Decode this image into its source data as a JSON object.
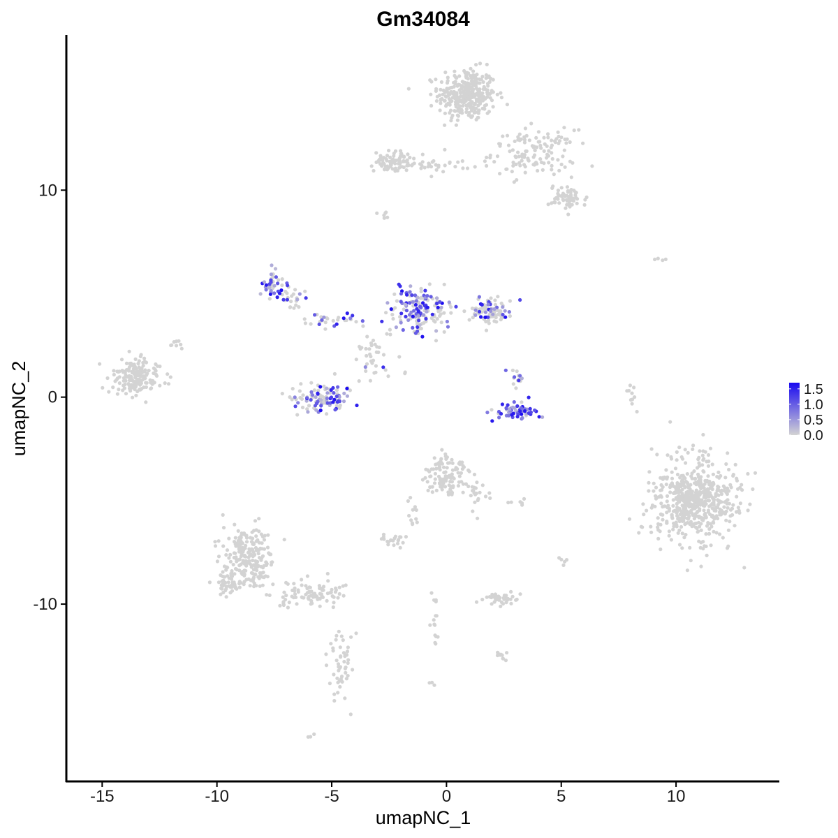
{
  "chart_data": {
    "type": "scatter",
    "title": "Gm34084",
    "xlabel": "umapNC_1",
    "ylabel": "umapNC_2",
    "xlim": [
      -16.5,
      14.5
    ],
    "ylim": [
      -18.5,
      17.5
    ],
    "x_ticks": [
      -15,
      -10,
      -5,
      0,
      5,
      10
    ],
    "x_tick_labels": [
      "-15",
      "-10",
      "-5",
      "0",
      "5",
      "10"
    ],
    "y_ticks": [
      -10,
      0,
      10
    ],
    "y_tick_labels": [
      "-10",
      "0",
      "10"
    ],
    "grid": false,
    "color_scale": {
      "low": "#d3d3d3",
      "high": "#1a0af0",
      "min": 0,
      "max": 1.7,
      "breaks": [
        0.0,
        0.5,
        1.0,
        1.5
      ],
      "labels": [
        "0.0",
        "0.5",
        "1.0",
        "1.5"
      ],
      "legend_position": "right"
    },
    "clusters": [
      {
        "x": 0.9,
        "y": 14.6,
        "sx": 0.9,
        "sy": 0.9,
        "n": 340,
        "expr": 0
      },
      {
        "x": 3.8,
        "y": 11.8,
        "sx": 1.3,
        "sy": 0.8,
        "n": 130,
        "expr": 0
      },
      {
        "x": 5.3,
        "y": 9.6,
        "sx": 0.6,
        "sy": 0.4,
        "n": 60,
        "expr": 0
      },
      {
        "x": -2.3,
        "y": 11.4,
        "sx": 0.6,
        "sy": 0.35,
        "n": 80,
        "expr": 0
      },
      {
        "x": -0.3,
        "y": 11.2,
        "sx": 1.0,
        "sy": 0.2,
        "n": 30,
        "expr": 0
      },
      {
        "x": -2.7,
        "y": 8.8,
        "sx": 0.2,
        "sy": 0.2,
        "n": 6,
        "expr": 0
      },
      {
        "x": -7.6,
        "y": 5.5,
        "sx": 0.35,
        "sy": 0.4,
        "n": 40,
        "expr": 0.6
      },
      {
        "x": -6.7,
        "y": 4.8,
        "sx": 0.5,
        "sy": 0.4,
        "n": 25,
        "expr": 0.15
      },
      {
        "x": -5.0,
        "y": 3.8,
        "sx": 0.8,
        "sy": 0.25,
        "n": 30,
        "expr": 0.3
      },
      {
        "x": -1.1,
        "y": 4.2,
        "sx": 1.0,
        "sy": 0.8,
        "n": 160,
        "expr": 0.55
      },
      {
        "x": 1.9,
        "y": 4.2,
        "sx": 0.6,
        "sy": 0.5,
        "n": 90,
        "expr": 0.35
      },
      {
        "x": -3.0,
        "y": 2.0,
        "sx": 0.8,
        "sy": 0.9,
        "n": 40,
        "expr": 0.1
      },
      {
        "x": -5.4,
        "y": 0.0,
        "sx": 0.9,
        "sy": 0.5,
        "n": 110,
        "expr": 0.45
      },
      {
        "x": 3.0,
        "y": -0.7,
        "sx": 0.7,
        "sy": 0.25,
        "n": 60,
        "expr": 0.8
      },
      {
        "x": 3.0,
        "y": 0.9,
        "sx": 0.3,
        "sy": 0.4,
        "n": 14,
        "expr": 0.3
      },
      {
        "x": -13.5,
        "y": 1.0,
        "sx": 0.8,
        "sy": 0.6,
        "n": 170,
        "expr": 0
      },
      {
        "x": 0.0,
        "y": -3.8,
        "sx": 0.6,
        "sy": 0.7,
        "n": 110,
        "expr": 0
      },
      {
        "x": 1.2,
        "y": -4.6,
        "sx": 0.4,
        "sy": 0.6,
        "n": 25,
        "expr": 0
      },
      {
        "x": -8.6,
        "y": -7.7,
        "sx": 0.8,
        "sy": 1.0,
        "n": 220,
        "expr": 0
      },
      {
        "x": -9.5,
        "y": -9.0,
        "sx": 0.4,
        "sy": 0.4,
        "n": 50,
        "expr": 0
      },
      {
        "x": -5.8,
        "y": -9.5,
        "sx": 1.1,
        "sy": 0.5,
        "n": 90,
        "expr": 0
      },
      {
        "x": -4.6,
        "y": -13.0,
        "sx": 0.4,
        "sy": 1.6,
        "n": 50,
        "expr": 0
      },
      {
        "x": -2.3,
        "y": -6.9,
        "sx": 0.35,
        "sy": 0.2,
        "n": 20,
        "expr": 0
      },
      {
        "x": -1.4,
        "y": -5.5,
        "sx": 0.2,
        "sy": 0.6,
        "n": 12,
        "expr": 0
      },
      {
        "x": 2.4,
        "y": -9.7,
        "sx": 0.6,
        "sy": 0.25,
        "n": 40,
        "expr": 0
      },
      {
        "x": 2.4,
        "y": -12.5,
        "sx": 0.2,
        "sy": 0.2,
        "n": 10,
        "expr": 0
      },
      {
        "x": -0.5,
        "y": -10.8,
        "sx": 0.15,
        "sy": 0.9,
        "n": 15,
        "expr": 0
      },
      {
        "x": 3.0,
        "y": -5.1,
        "sx": 0.3,
        "sy": 0.1,
        "n": 6,
        "expr": 0
      },
      {
        "x": 10.8,
        "y": -5.0,
        "sx": 1.3,
        "sy": 1.5,
        "n": 600,
        "expr": 0
      },
      {
        "x": 8.0,
        "y": -0.2,
        "sx": 0.15,
        "sy": 0.6,
        "n": 10,
        "expr": 0
      },
      {
        "x": 9.4,
        "y": 6.7,
        "sx": 0.3,
        "sy": 0.1,
        "n": 4,
        "expr": 0
      },
      {
        "x": -11.8,
        "y": 2.5,
        "sx": 0.2,
        "sy": 0.3,
        "n": 8,
        "expr": 0
      },
      {
        "x": -0.6,
        "y": -13.9,
        "sx": 0.1,
        "sy": 0.1,
        "n": 3,
        "expr": 0
      },
      {
        "x": -5.9,
        "y": -16.4,
        "sx": 0.1,
        "sy": 0.1,
        "n": 3,
        "expr": 0
      },
      {
        "x": 5.1,
        "y": -7.8,
        "sx": 0.1,
        "sy": 0.3,
        "n": 5,
        "expr": 0
      }
    ]
  }
}
